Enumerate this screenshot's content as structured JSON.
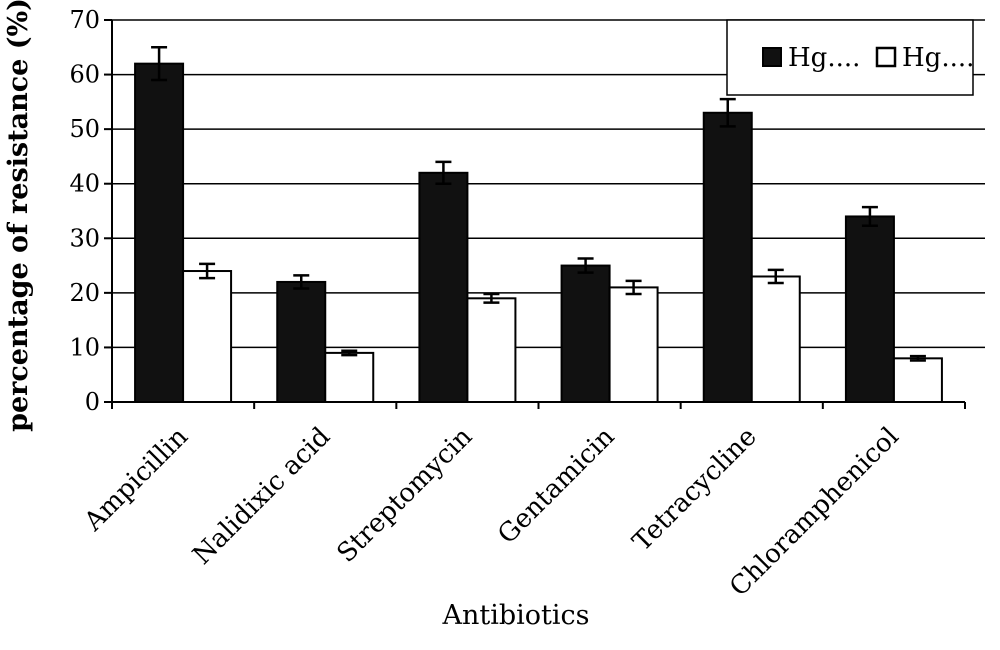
{
  "chart_data": {
    "type": "bar",
    "title": "",
    "xlabel": "Antibiotics",
    "ylabel": "percentage of resistance (%)",
    "ylim": [
      0,
      70
    ],
    "yticks": [
      0,
      10,
      20,
      30,
      40,
      50,
      60,
      70
    ],
    "grid": true,
    "legend_position": "top-right",
    "categories": [
      "Ampicillin",
      "Nalidixic acid",
      "Streptomycin",
      "Gentamicin",
      "Tetracycline",
      "Chloramphenicol"
    ],
    "series": [
      {
        "name": "Hg....",
        "color": "#111111",
        "values": [
          62,
          22,
          42,
          25,
          53,
          34
        ],
        "errors": [
          3,
          1.2,
          2,
          1.3,
          2.5,
          1.7
        ]
      },
      {
        "name": "Hg....",
        "color": "#ffffff",
        "values": [
          24,
          9,
          19,
          21,
          23,
          8
        ],
        "errors": [
          1.3,
          0.4,
          0.8,
          1.2,
          1.2,
          0.4
        ]
      }
    ]
  }
}
